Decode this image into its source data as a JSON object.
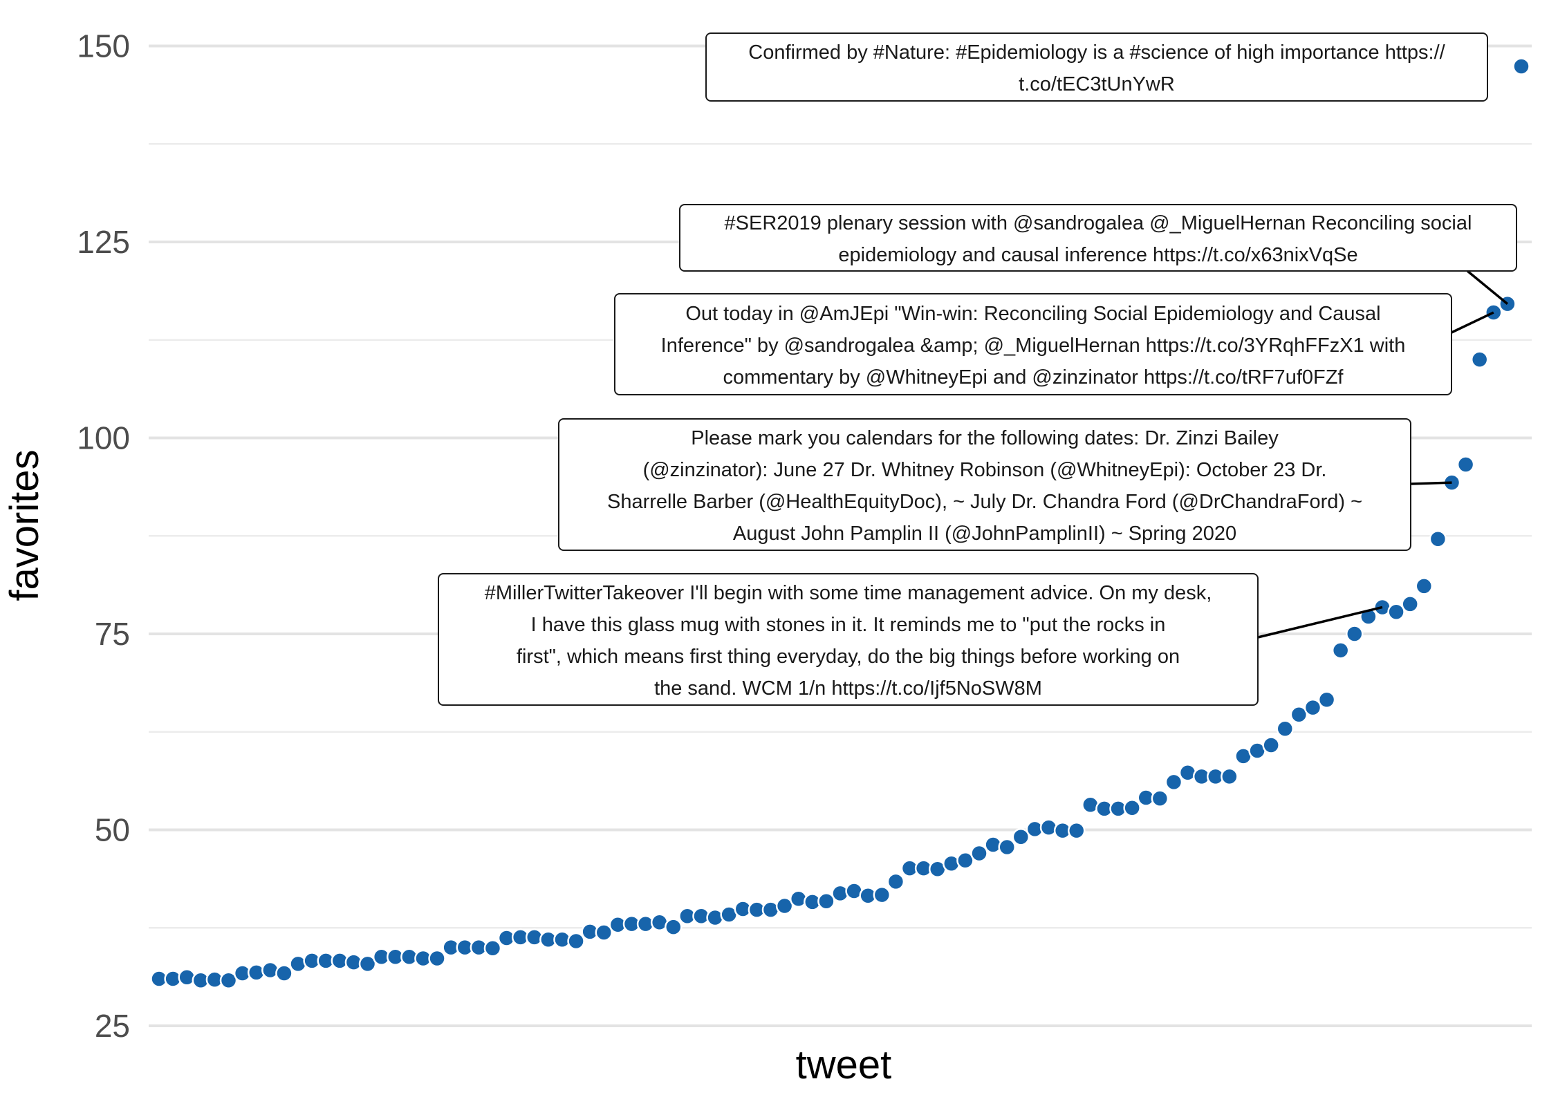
{
  "chart_data": {
    "type": "scatter",
    "xlabel": "tweet",
    "ylabel": "favorites",
    "ylim": [
      25,
      150
    ],
    "yticks": [
      "25",
      "50",
      "75",
      "100",
      "125",
      "150"
    ],
    "ytick_values": [
      25,
      50,
      75,
      100,
      125,
      150
    ],
    "grid": true,
    "legend": "none",
    "point_color": "#1764ab",
    "series": [
      {
        "values": [
          31,
          31,
          31.2,
          30.8,
          30.9,
          30.8,
          31.7,
          31.8,
          32.1,
          31.7,
          32.9,
          33.3,
          33.3,
          33.3,
          33.1,
          32.9,
          33.8,
          33.8,
          33.8,
          33.6,
          33.6,
          35,
          35,
          35,
          34.9,
          36.2,
          36.3,
          36.3,
          36,
          36,
          35.8,
          37,
          36.9,
          37.9,
          38,
          38,
          38.2,
          37.6,
          39,
          39,
          38.8,
          39.2,
          39.9,
          39.8,
          39.8,
          40.3,
          41.2,
          40.8,
          40.9,
          41.9,
          42.2,
          41.6,
          41.7,
          43.4,
          45.1,
          45.1,
          45,
          45.7,
          46.1,
          47,
          48.1,
          47.8,
          49.1,
          50.1,
          50.3,
          49.9,
          49.9,
          53.2,
          52.7,
          52.7,
          52.8,
          54.1,
          54,
          56.1,
          57.3,
          56.8,
          56.8,
          56.8,
          59.4,
          60.1,
          60.8,
          62.9,
          64.7,
          65.6,
          66.6,
          72.9,
          75,
          77.2,
          78.4,
          77.8,
          78.8,
          81.1,
          87.1,
          94.3,
          96.6,
          110,
          116,
          117.1,
          147.4
        ]
      }
    ],
    "annotations": [
      {
        "lines": [
          "Confirmed by #Nature: #Epidemiology is a #science of high importance https://",
          "t.co/tEC3tUnYwR"
        ],
        "point_index": 98,
        "leader": false
      },
      {
        "lines": [
          "#SER2019 plenary session with @sandrogalea @_MiguelHernan Reconciling social",
          "epidemiology and causal inference https://t.co/x63nixVqSe"
        ],
        "point_index": 97,
        "leader": true
      },
      {
        "lines": [
          "Out today in @AmJEpi \"Win-win: Reconciling Social Epidemiology and Causal",
          "Inference\" by @sandrogalea &amp; @_MiguelHernan https://t.co/3YRqhFFzX1 with",
          "commentary by @WhitneyEpi and @zinzinator https://t.co/tRF7uf0FZf"
        ],
        "point_index": 96,
        "leader": true
      },
      {
        "lines": [
          "Please mark you calendars for the following dates: Dr. Zinzi Bailey",
          "(@zinzinator): June 27 Dr. Whitney Robinson (@WhitneyEpi): October 23 Dr.",
          "Sharrelle Barber (@HealthEquityDoc), ~ July Dr. Chandra Ford (@DrChandraFord) ~",
          "August John Pamplin II (@JohnPamplinII) ~ Spring 2020"
        ],
        "point_index": 93,
        "leader": true
      },
      {
        "lines": [
          "#MillerTwitterTakeover I'll begin with some time management advice. On my desk,",
          "I have this glass mug with stones in it. It reminds me to \"put the rocks in",
          "first\", which means first thing everyday, do the big things before working on",
          "the sand. WCM 1/n https://t.co/Ijf5NoSW8M"
        ],
        "point_index": 88,
        "leader": true
      }
    ]
  }
}
